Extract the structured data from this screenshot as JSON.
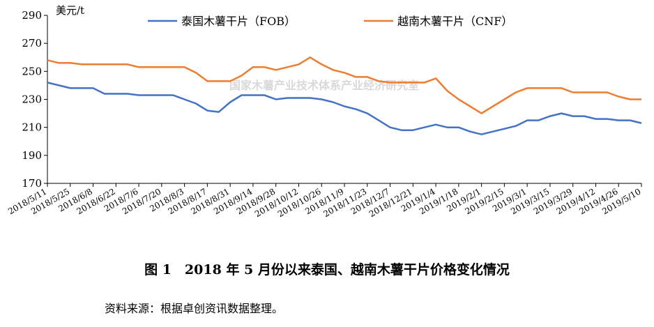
{
  "chart_data": {
    "type": "line",
    "title": "",
    "xlabel": "",
    "ylabel": "美元/t",
    "ylim": [
      170,
      290
    ],
    "yticks": [
      170,
      190,
      210,
      230,
      250,
      270,
      290
    ],
    "grid": false,
    "legend_position": "top",
    "watermark": "国家木薯产业技术体系产业经济研究室",
    "x": [
      "2018/5/11",
      "2018/5/18",
      "2018/5/25",
      "2018/6/1",
      "2018/6/8",
      "2018/6/15",
      "2018/6/22",
      "2018/6/29",
      "2018/7/6",
      "2018/7/13",
      "2018/7/20",
      "2018/7/27",
      "2018/8/3",
      "2018/8/10",
      "2018/8/17",
      "2018/8/24",
      "2018/8/31",
      "2018/9/7",
      "2018/9/14",
      "2018/9/21",
      "2018/9/28",
      "2018/10/5",
      "2018/10/12",
      "2018/10/19",
      "2018/10/26",
      "2018/11/2",
      "2018/11/9",
      "2018/11/16",
      "2018/11/23",
      "2018/11/30",
      "2018/12/7",
      "2018/12/14",
      "2018/12/21",
      "2018/12/28",
      "2019/1/4",
      "2019/1/11",
      "2019/1/18",
      "2019/1/25",
      "2019/2/1",
      "2019/2/8",
      "2019/2/15",
      "2019/2/22",
      "2019/3/1",
      "2019/3/8",
      "2019/3/15",
      "2019/3/22",
      "2019/3/29",
      "2019/4/5",
      "2019/4/12",
      "2019/4/19",
      "2019/4/26",
      "2019/5/3",
      "2019/5/10"
    ],
    "xtick_labels": [
      "2018/5/11",
      "2018/5/25",
      "2018/6/8",
      "2018/6/22",
      "2018/7/6",
      "2018/7/20",
      "2018/8/3",
      "2018/8/17",
      "2018/8/31",
      "2018/9/14",
      "2018/9/28",
      "2018/10/12",
      "2018/10/26",
      "2018/11/9",
      "2018/11/23",
      "2018/12/7",
      "2018/12/21",
      "2019/1/4",
      "2019/1/18",
      "2019/2/1",
      "2019/2/15",
      "2019/3/1",
      "2019/3/15",
      "2019/3/29",
      "2019/4/12",
      "2019/4/26",
      "2019/5/10"
    ],
    "series": [
      {
        "name": "泰国木薯干片（FOB）",
        "color": "#4472c4",
        "values": [
          242,
          240,
          238,
          238,
          238,
          234,
          234,
          234,
          233,
          233,
          233,
          233,
          230,
          227,
          222,
          221,
          228,
          233,
          233,
          233,
          230,
          231,
          231,
          231,
          230,
          228,
          225,
          223,
          220,
          215,
          210,
          208,
          208,
          210,
          212,
          210,
          210,
          207,
          205,
          207,
          209,
          211,
          215,
          215,
          218,
          220,
          218,
          218,
          216,
          216,
          215,
          215,
          213
        ]
      },
      {
        "name": "越南木薯干片（CNF）",
        "color": "#ed7d31",
        "values": [
          258,
          256,
          256,
          255,
          255,
          255,
          255,
          255,
          253,
          253,
          253,
          253,
          253,
          249,
          243,
          243,
          243,
          247,
          253,
          253,
          251,
          253,
          255,
          260,
          255,
          251,
          249,
          246,
          246,
          243,
          242,
          242,
          242,
          242,
          245,
          236,
          230,
          225,
          220,
          225,
          230,
          235,
          238,
          238,
          238,
          238,
          235,
          235,
          235,
          235,
          232,
          230,
          230
        ]
      }
    ]
  },
  "caption": "图 1　2018 年 5 月份以来泰国、越南木薯干片价格变化情况",
  "source": "资料来源：根据卓创资讯数据整理。"
}
